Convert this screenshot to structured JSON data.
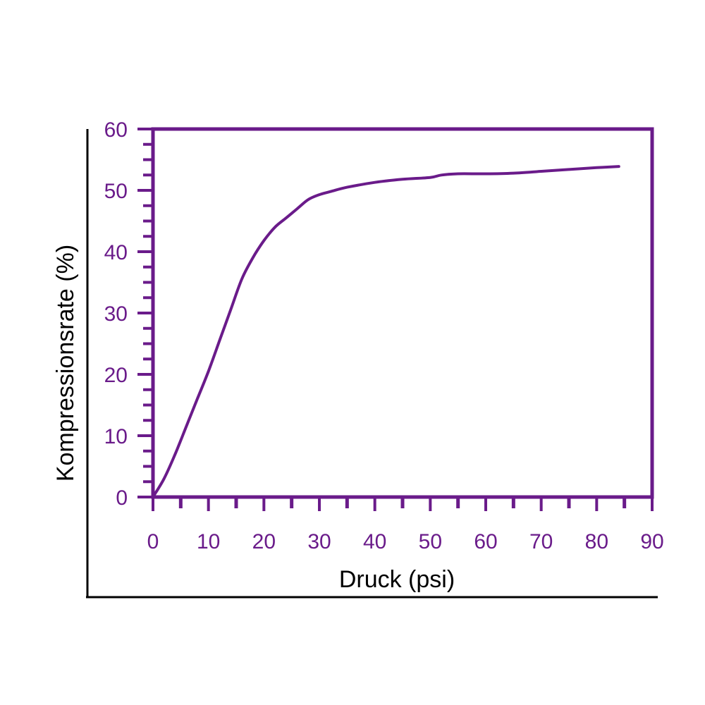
{
  "chart_data": {
    "type": "line",
    "title": "",
    "xlabel": "Druck (psi)",
    "ylabel": "Kompressionsrate (%)",
    "xlim": [
      0,
      90
    ],
    "ylim": [
      0,
      60
    ],
    "x_ticks": [
      "0",
      "10",
      "20",
      "30",
      "40",
      "50",
      "60",
      "70",
      "80",
      "90"
    ],
    "y_ticks": [
      "0",
      "10",
      "20",
      "30",
      "40",
      "50",
      "60"
    ],
    "grid": false,
    "series": [
      {
        "x": [
          0,
          2,
          4,
          6,
          8,
          10,
          12,
          14,
          16,
          18,
          20,
          22,
          24,
          26,
          28,
          30,
          32,
          35,
          40,
          45,
          50,
          52,
          55,
          60,
          65,
          70,
          75,
          80,
          84
        ],
        "values": [
          0,
          3,
          7,
          11.5,
          16,
          20.5,
          25.5,
          30.5,
          35.5,
          39,
          41.8,
          44,
          45.5,
          47,
          48.5,
          49.3,
          49.8,
          50.5,
          51.3,
          51.8,
          52.1,
          52.5,
          52.7,
          52.7,
          52.8,
          53.1,
          53.4,
          53.7,
          53.9
        ]
      }
    ]
  },
  "colors": {
    "accent": "#6a1b8a",
    "outer_axes": "#000000"
  }
}
